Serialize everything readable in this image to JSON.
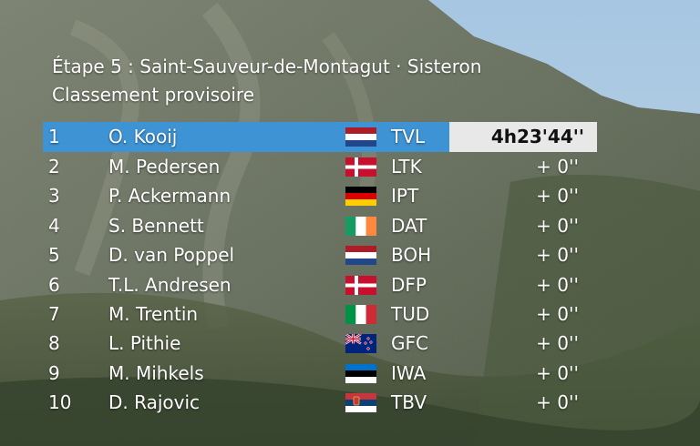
{
  "header": {
    "stage": "Étape 5 : Saint-Sauveur-de-Montagut · Sisteron",
    "subtitle": "Classement provisoire"
  },
  "rows": [
    {
      "rank": "1",
      "name": "O. Kooij",
      "flag": "netherlands",
      "team": "TVL",
      "time": "4h23'44''"
    },
    {
      "rank": "2",
      "name": "M. Pedersen",
      "flag": "denmark",
      "team": "LTK",
      "time": "+ 0''"
    },
    {
      "rank": "3",
      "name": "P. Ackermann",
      "flag": "germany",
      "team": "IPT",
      "time": "+ 0''"
    },
    {
      "rank": "4",
      "name": "S. Bennett",
      "flag": "ireland",
      "team": "DAT",
      "time": "+ 0''"
    },
    {
      "rank": "5",
      "name": "D. van Poppel",
      "flag": "netherlands",
      "team": "BOH",
      "time": "+ 0''"
    },
    {
      "rank": "6",
      "name": "T.L. Andresen",
      "flag": "denmark",
      "team": "DFP",
      "time": "+ 0''"
    },
    {
      "rank": "7",
      "name": "M. Trentin",
      "flag": "italy",
      "team": "TUD",
      "time": "+ 0''"
    },
    {
      "rank": "8",
      "name": "L. Pithie",
      "flag": "new-zealand",
      "team": "GFC",
      "time": "+ 0''"
    },
    {
      "rank": "9",
      "name": "M. Mihkels",
      "flag": "estonia",
      "team": "IWA",
      "time": "+ 0''"
    },
    {
      "rank": "10",
      "name": "D. Rajovic",
      "flag": "serbia",
      "team": "TBV",
      "time": "+ 0''"
    }
  ],
  "colors": {
    "leader_bar": "#3d93d4",
    "time_box": "#e8e8e8",
    "sky": "#9cbedc"
  }
}
